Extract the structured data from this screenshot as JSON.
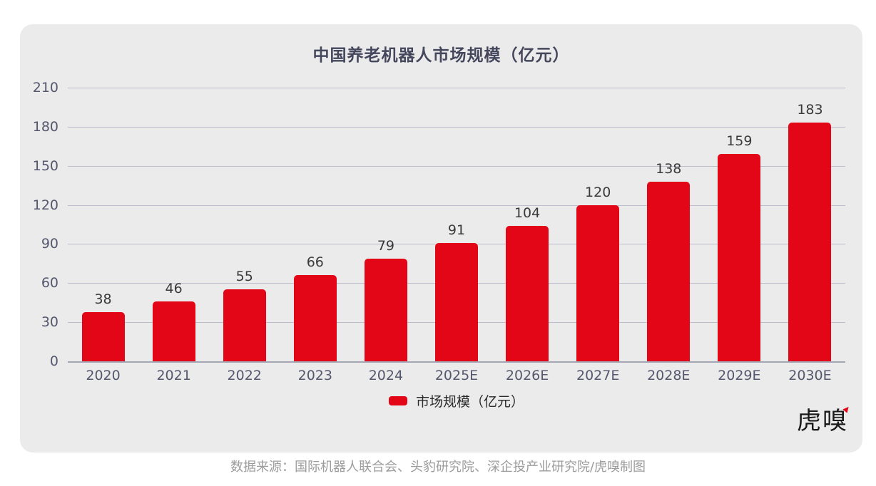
{
  "chart_data": {
    "type": "bar",
    "title": "中国养老机器人市场规模（亿元）",
    "categories": [
      "2020",
      "2021",
      "2022",
      "2023",
      "2024",
      "2025E",
      "2026E",
      "2027E",
      "2028E",
      "2029E",
      "2030E"
    ],
    "values": [
      38,
      46,
      55,
      66,
      79,
      91,
      104,
      120,
      138,
      159,
      183
    ],
    "series_name": "市场规模（亿元）",
    "xlabel": "",
    "ylabel": "",
    "ylim": [
      0,
      210
    ],
    "yticks": [
      0,
      30,
      60,
      90,
      120,
      150,
      180,
      210
    ],
    "grid": true,
    "data_labels": true,
    "legend_position": "bottom",
    "bar_color": "#e30617"
  },
  "legend": {
    "label": "市场规模（亿元）"
  },
  "logo": {
    "text": "虎嗅"
  },
  "source": {
    "text": "数据来源：国际机器人联合会、头豹研究院、深企投产业研究院/虎嗅制图"
  },
  "colors": {
    "page_bg": "#ffffff",
    "card_bg": "#ebebeb",
    "title": "#45485c",
    "axis_label": "#54576d",
    "data_label": "#3a3a3a",
    "gridline": "#bcbecb",
    "axis_line": "#a4a7b3",
    "bar": "#e30617",
    "legend_text": "#2a2a2a",
    "source_text": "#9c9c9c",
    "logo_red": "#e30617"
  }
}
